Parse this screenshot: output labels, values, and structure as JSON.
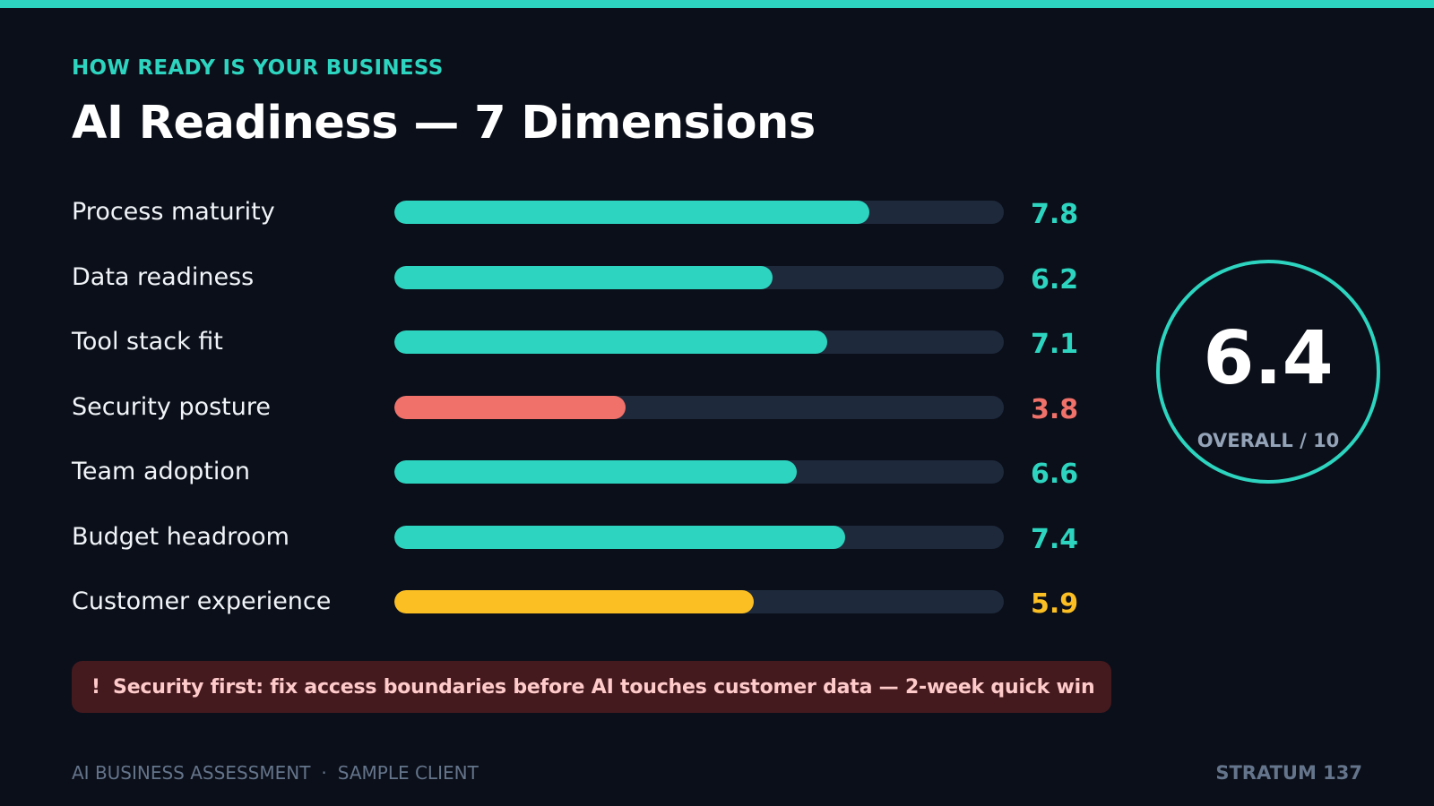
{
  "header": {
    "eyebrow": "HOW READY IS YOUR BUSINESS",
    "title": "AI Readiness — 7 Dimensions"
  },
  "colors": {
    "accent": "#2dd4bf",
    "warning": "#fbbf24",
    "danger": "#f0716a",
    "track": "#1e293b",
    "background": "#0b0f19"
  },
  "chart_data": {
    "type": "bar",
    "orientation": "horizontal",
    "title": "AI Readiness — 7 Dimensions",
    "categories": [
      "Process maturity",
      "Data readiness",
      "Tool stack fit",
      "Security posture",
      "Team adoption",
      "Budget headroom",
      "Customer experience"
    ],
    "values": [
      7.8,
      6.2,
      7.1,
      3.8,
      6.6,
      7.4,
      5.9
    ],
    "value_labels": [
      "7.8",
      "6.2",
      "7.1",
      "3.8",
      "6.6",
      "7.4",
      "5.9"
    ],
    "bar_colors": [
      "#2dd4bf",
      "#2dd4bf",
      "#2dd4bf",
      "#f0716a",
      "#2dd4bf",
      "#2dd4bf",
      "#fbbf24"
    ],
    "xlim": [
      0,
      10
    ],
    "grid": false,
    "legend": "none"
  },
  "overall": {
    "value": "6.4",
    "caption": "OVERALL / 10"
  },
  "alert": {
    "icon": "!",
    "text": "Security first: fix access boundaries before AI touches customer data — 2-week quick win"
  },
  "footer": {
    "left_a": "AI BUSINESS ASSESSMENT",
    "separator": "·",
    "left_b": "SAMPLE CLIENT",
    "brand": "STRATUM 137"
  }
}
